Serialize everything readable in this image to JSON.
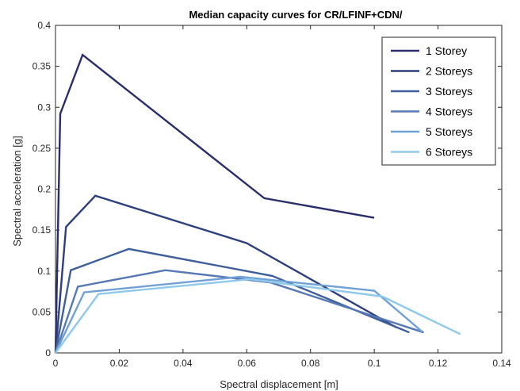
{
  "chart_data": {
    "type": "line",
    "title": "Median capacity curves for CR/LFINF+CDN/",
    "xlabel": "Spectral displacement [m]",
    "ylabel": "Spectral acceleration [g]",
    "xlim": [
      0,
      0.14
    ],
    "ylim": [
      0,
      0.4
    ],
    "xticks": [
      0,
      0.02,
      0.04,
      0.06,
      0.08,
      0.1,
      0.12,
      0.14
    ],
    "yticks": [
      0,
      0.05,
      0.1,
      0.15,
      0.2,
      0.25,
      0.3,
      0.35,
      0.4
    ],
    "xtick_labels": [
      "0",
      "0.02",
      "0.04",
      "0.06",
      "0.08",
      "0.1",
      "0.12",
      "0.14"
    ],
    "ytick_labels": [
      "0",
      "0.05",
      "0.1",
      "0.15",
      "0.2",
      "0.25",
      "0.3",
      "0.35",
      "0.4"
    ],
    "grid": false,
    "legend_position": "top-right",
    "series": [
      {
        "name": "1 Storey",
        "color": "#2a2e6b",
        "x": [
          0,
          0.0015,
          0.0085,
          0.0655,
          0.1
        ],
        "y": [
          0,
          0.292,
          0.364,
          0.189,
          0.165
        ]
      },
      {
        "name": "2 Storeys",
        "color": "#2e3f7e",
        "x": [
          0,
          0.0033,
          0.0125,
          0.06,
          0.107
        ],
        "y": [
          0,
          0.154,
          0.192,
          0.134,
          0.031
        ]
      },
      {
        "name": "3 Storeys",
        "color": "#3e5f99",
        "x": [
          0,
          0.0048,
          0.023,
          0.068,
          0.111
        ],
        "y": [
          0,
          0.101,
          0.127,
          0.094,
          0.025
        ]
      },
      {
        "name": "4 Storeys",
        "color": "#5679b5",
        "x": [
          0,
          0.007,
          0.0345,
          0.0675,
          0.1155
        ],
        "y": [
          0,
          0.081,
          0.101,
          0.086,
          0.025
        ]
      },
      {
        "name": "5 Storeys",
        "color": "#6fa0d6",
        "x": [
          0,
          0.009,
          0.058,
          0.1,
          0.115
        ],
        "y": [
          0,
          0.074,
          0.093,
          0.076,
          0.026
        ]
      },
      {
        "name": "6 Storeys",
        "color": "#8ec8ea",
        "x": [
          0,
          0.0135,
          0.061,
          0.1025,
          0.127
        ],
        "y": [
          0,
          0.072,
          0.09,
          0.069,
          0.023
        ]
      }
    ]
  }
}
